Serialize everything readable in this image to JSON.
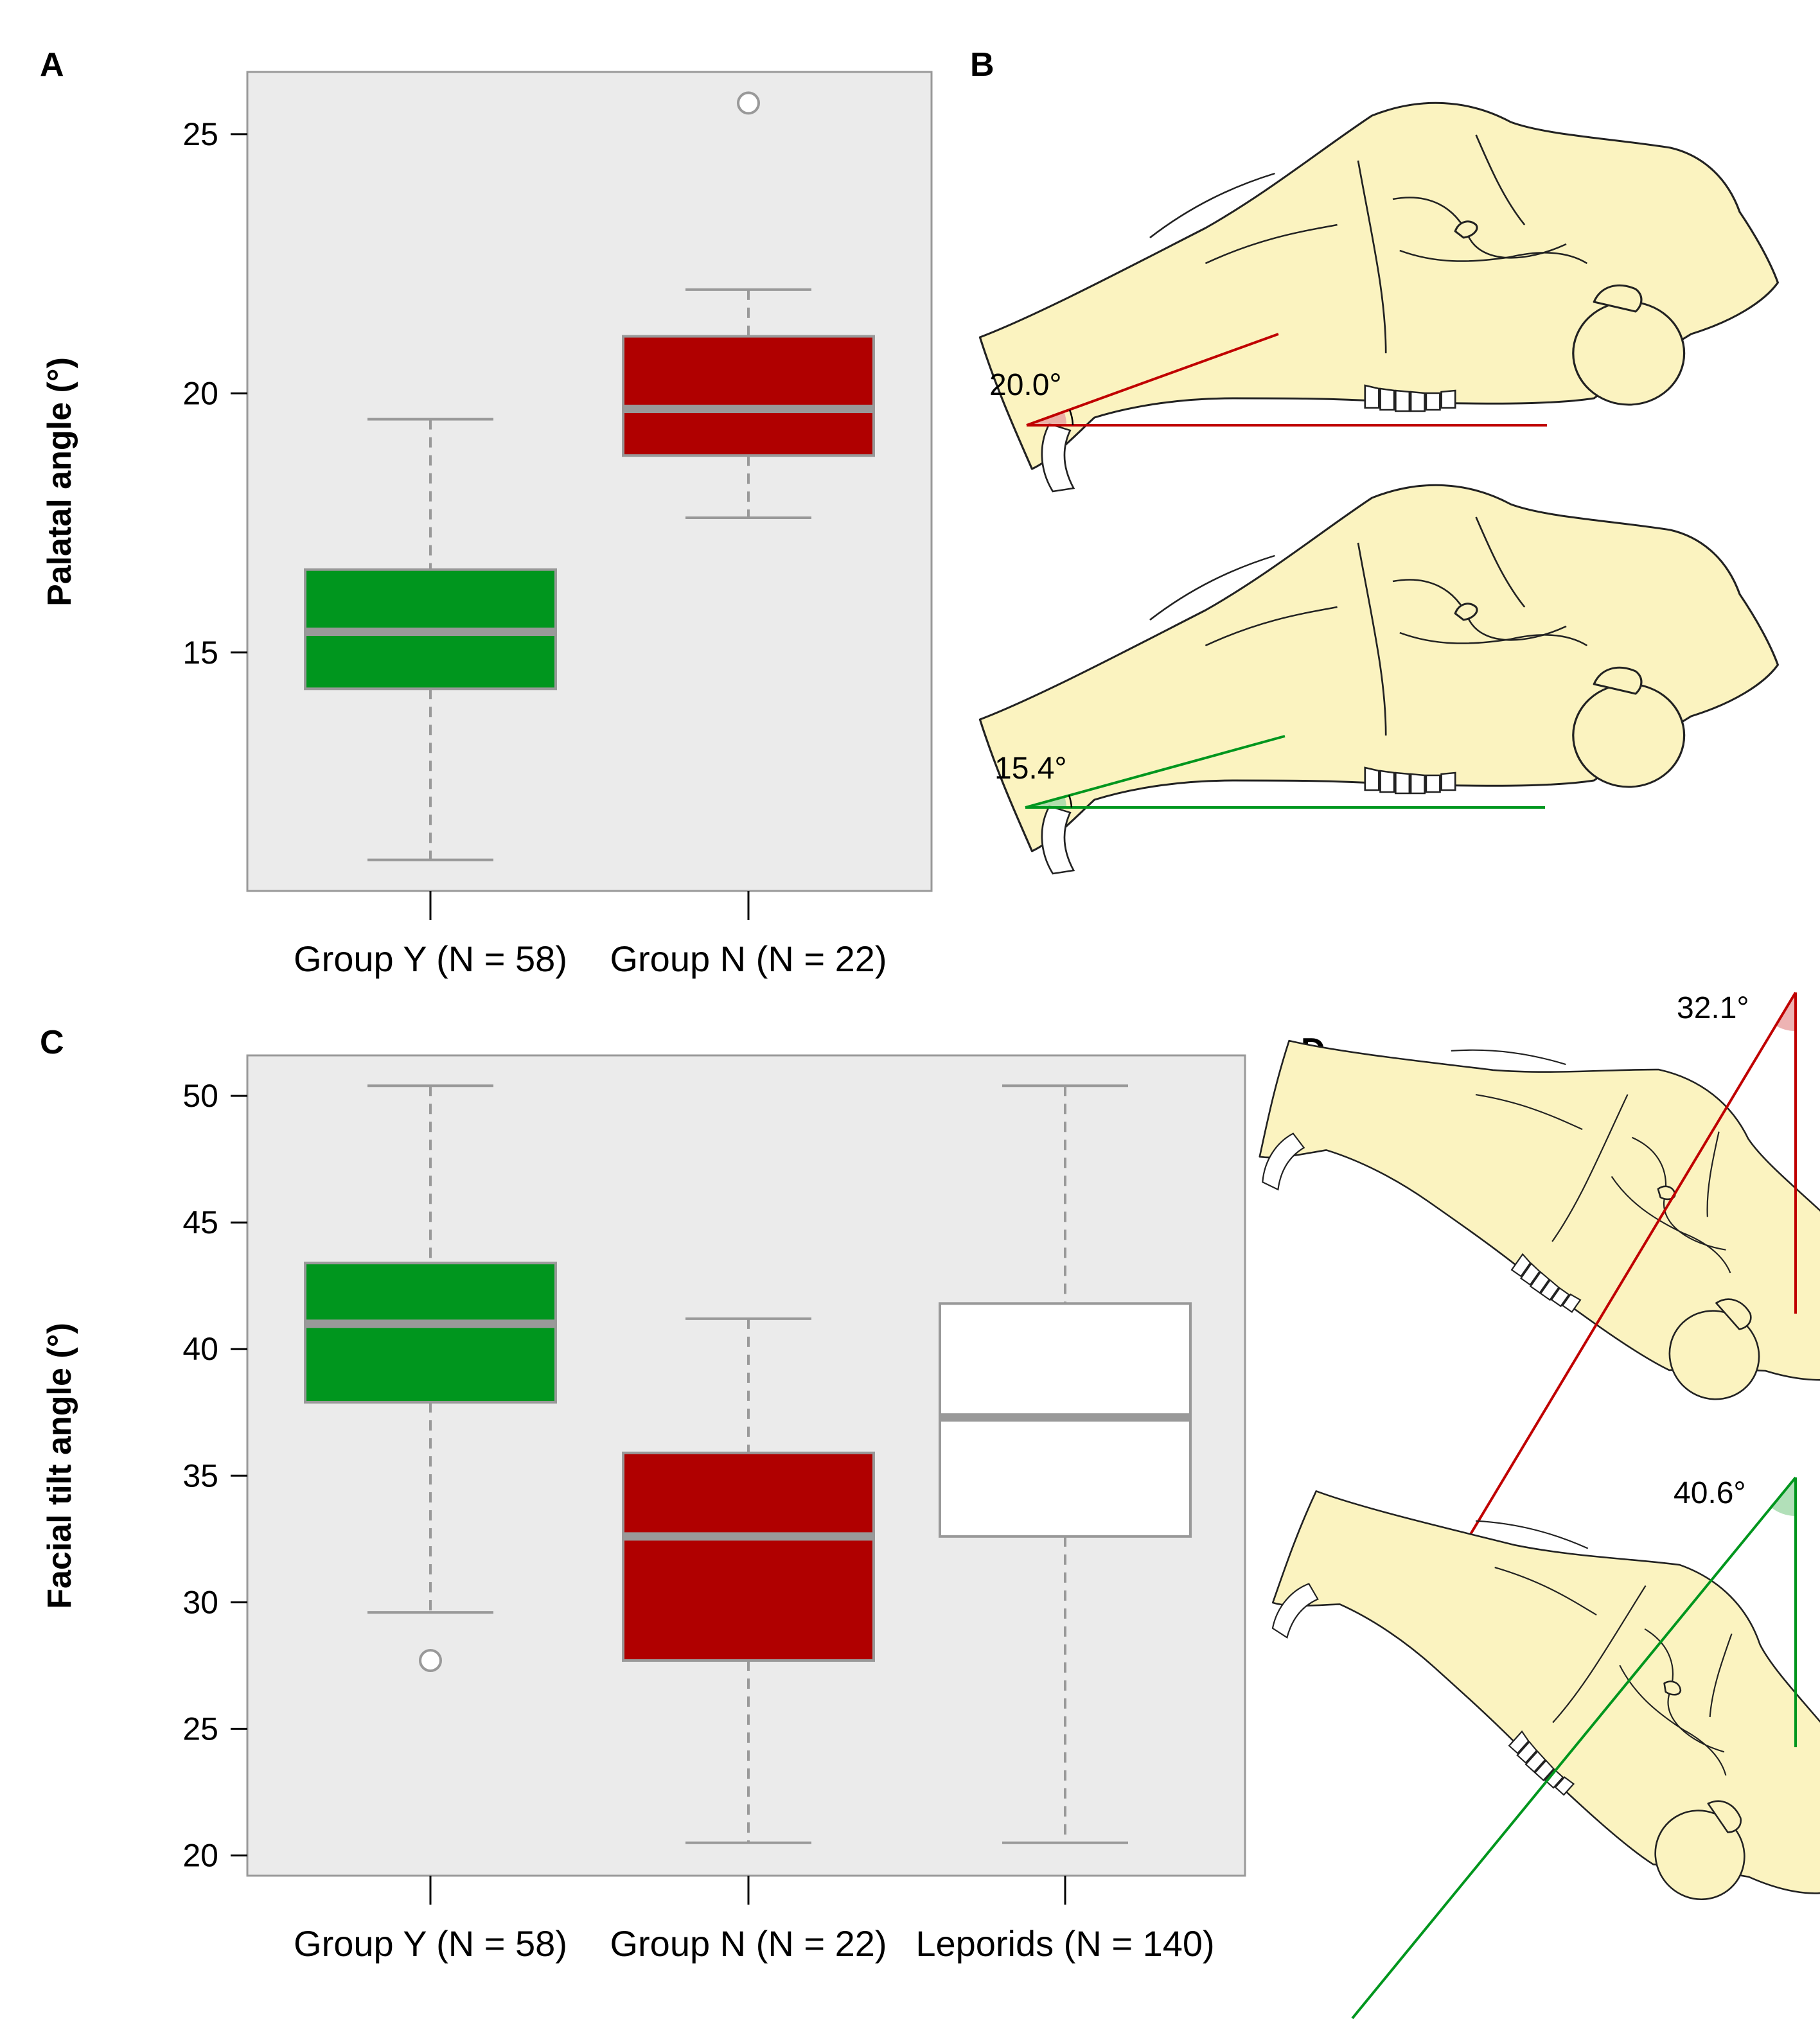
{
  "panels": {
    "A": "A",
    "B": "B",
    "C": "C",
    "D": "D"
  },
  "colors": {
    "group_y": "#00961e",
    "group_n": "#b00000",
    "leporids": "#ffffff",
    "plot_bg": "#ebebeb",
    "median": "#999999"
  },
  "chart_data": [
    {
      "type": "box",
      "panel": "A",
      "title": "",
      "ylabel": "Palatal angle (°)",
      "ylim": [
        10.4,
        26.2
      ],
      "yticks": [
        15,
        20,
        25
      ],
      "ytick_labels": [
        "15",
        "20",
        "25"
      ],
      "categories": [
        "Group Y (N = 58)",
        "Group N (N = 22)"
      ],
      "series": [
        {
          "name": "Group Y",
          "n": 58,
          "color": "#00961e",
          "whisker_low": 11.0,
          "q1": 14.3,
          "median": 15.4,
          "q3": 16.6,
          "whisker_high": 19.5,
          "outliers": []
        },
        {
          "name": "Group N",
          "n": 22,
          "color": "#b00000",
          "whisker_low": 17.6,
          "q1": 18.8,
          "median": 19.7,
          "q3": 21.1,
          "whisker_high": 22.0,
          "outliers": [
            25.6
          ]
        }
      ]
    },
    {
      "type": "box",
      "panel": "C",
      "title": "",
      "ylabel": "Facial tilt angle (°)",
      "ylim": [
        19.2,
        51.6
      ],
      "yticks": [
        20,
        25,
        30,
        35,
        40,
        45,
        50
      ],
      "ytick_labels": [
        "20",
        "25",
        "30",
        "35",
        "40",
        "45",
        "50"
      ],
      "categories": [
        "Group Y (N = 58)",
        "Group N (N = 22)",
        "Leporids (N = 140)"
      ],
      "series": [
        {
          "name": "Group Y",
          "n": 58,
          "color": "#00961e",
          "whisker_low": 29.6,
          "q1": 37.9,
          "median": 41.0,
          "q3": 43.4,
          "whisker_high": 50.4,
          "outliers": [
            27.7
          ]
        },
        {
          "name": "Group N",
          "n": 22,
          "color": "#b00000",
          "whisker_low": 20.5,
          "q1": 27.7,
          "median": 32.6,
          "q3": 35.9,
          "whisker_high": 41.2,
          "outliers": []
        },
        {
          "name": "Leporids",
          "n": 140,
          "color": "#ffffff",
          "whisker_low": 20.5,
          "q1": 32.6,
          "median": 37.3,
          "q3": 41.8,
          "whisker_high": 50.4,
          "outliers": []
        }
      ]
    }
  ],
  "illustrations": {
    "B": {
      "top_angle": "20.0°",
      "bottom_angle": "15.4°",
      "top_angle_value": 20.0,
      "bottom_angle_value": 15.4
    },
    "D": {
      "top_angle": "32.1°",
      "bottom_angle": "40.6°",
      "top_angle_value": 32.1,
      "bottom_angle_value": 40.6
    }
  }
}
